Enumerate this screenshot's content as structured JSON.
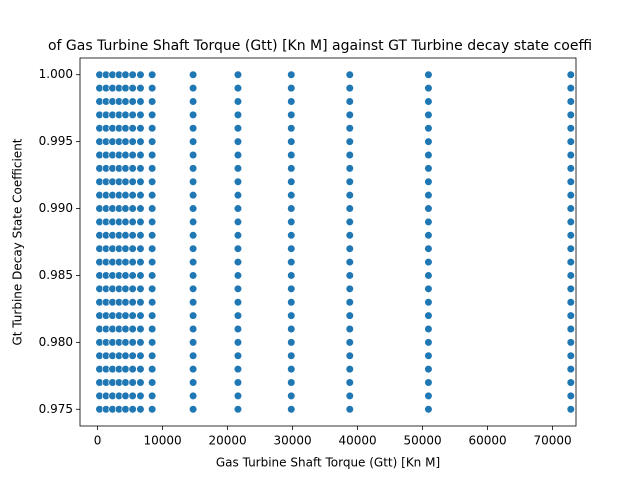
{
  "chart_data": {
    "type": "scatter",
    "title": "of Gas Turbine Shaft Torque (Gtt) [Kn M] against GT Turbine decay state coeffi",
    "x_label": "Gas Turbine Shaft Torque (Gtt) [Kn M]",
    "y_label": "Gt Turbine Decay State Coefficient",
    "color": "#1f77b4",
    "xlim": [
      -2700,
      73600
    ],
    "ylim": [
      0.97375,
      1.00125
    ],
    "xticks": [
      0,
      10000,
      20000,
      30000,
      40000,
      50000,
      60000,
      70000
    ],
    "yticks": [
      {
        "value": 0.975,
        "label": "0.975"
      },
      {
        "value": 0.98,
        "label": "0.980"
      },
      0.985,
      {
        "value": 0.99,
        "label": "0.990"
      },
      0.995,
      {
        "value": 1,
        "label": "1.000"
      }
    ],
    "x": [
      300,
      300,
      300,
      300,
      300,
      300,
      300,
      300,
      300,
      300,
      300,
      300,
      300,
      300,
      300,
      300,
      300,
      300,
      300,
      300,
      300,
      300,
      300,
      300,
      300,
      300,
      1300,
      1300,
      1300,
      1300,
      1300,
      1300,
      1300,
      1300,
      1300,
      1300,
      1300,
      1300,
      1300,
      1300,
      1300,
      1300,
      1300,
      1300,
      1300,
      1300,
      1300,
      1300,
      1300,
      1300,
      1300,
      1300,
      2300,
      2300,
      2300,
      2300,
      2300,
      2300,
      2300,
      2300,
      2300,
      2300,
      2300,
      2300,
      2300,
      2300,
      2300,
      2300,
      2300,
      2300,
      2300,
      2300,
      2300,
      2300,
      2300,
      2300,
      2300,
      2300,
      3300,
      3300,
      3300,
      3300,
      3300,
      3300,
      3300,
      3300,
      3300,
      3300,
      3300,
      3300,
      3300,
      3300,
      3300,
      3300,
      3300,
      3300,
      3300,
      3300,
      3300,
      3300,
      3300,
      3300,
      3300,
      3300,
      4300,
      4300,
      4300,
      4300,
      4300,
      4300,
      4300,
      4300,
      4300,
      4300,
      4300,
      4300,
      4300,
      4300,
      4300,
      4300,
      4300,
      4300,
      4300,
      4300,
      4300,
      4300,
      4300,
      4300,
      4300,
      4300,
      5400,
      5400,
      5400,
      5400,
      5400,
      5400,
      5400,
      5400,
      5400,
      5400,
      5400,
      5400,
      5400,
      5400,
      5400,
      5400,
      5400,
      5400,
      5400,
      5400,
      5400,
      5400,
      5400,
      5400,
      5400,
      5400,
      6600,
      6600,
      6600,
      6600,
      6600,
      6600,
      6600,
      6600,
      6600,
      6600,
      6600,
      6600,
      6600,
      6600,
      6600,
      6600,
      6600,
      6600,
      6600,
      6600,
      6600,
      6600,
      6600,
      6600,
      6600,
      6600,
      8400,
      8400,
      8400,
      8400,
      8400,
      8400,
      8400,
      8400,
      8400,
      8400,
      8400,
      8400,
      8400,
      8400,
      8400,
      8400,
      8400,
      8400,
      8400,
      8400,
      8400,
      8400,
      8400,
      8400,
      8400,
      8400,
      14700,
      14700,
      14700,
      14700,
      14700,
      14700,
      14700,
      14700,
      14700,
      14700,
      14700,
      14700,
      14700,
      14700,
      14700,
      14700,
      14700,
      14700,
      14700,
      14700,
      14700,
      14700,
      14700,
      14700,
      14700,
      14700,
      21600,
      21600,
      21600,
      21600,
      21600,
      21600,
      21600,
      21600,
      21600,
      21600,
      21600,
      21600,
      21600,
      21600,
      21600,
      21600,
      21600,
      21600,
      21600,
      21600,
      21600,
      21600,
      21600,
      21600,
      21600,
      21600,
      29800,
      29800,
      29800,
      29800,
      29800,
      29800,
      29800,
      29800,
      29800,
      29800,
      29800,
      29800,
      29800,
      29800,
      29800,
      29800,
      29800,
      29800,
      29800,
      29800,
      29800,
      29800,
      29800,
      29800,
      29800,
      29800,
      38800,
      38800,
      38800,
      38800,
      38800,
      38800,
      38800,
      38800,
      38800,
      38800,
      38800,
      38800,
      38800,
      38800,
      38800,
      38800,
      38800,
      38800,
      38800,
      38800,
      38800,
      38800,
      38800,
      38800,
      38800,
      38800,
      50900,
      50900,
      50900,
      50900,
      50900,
      50900,
      50900,
      50900,
      50900,
      50900,
      50900,
      50900,
      50900,
      50900,
      50900,
      50900,
      50900,
      50900,
      50900,
      50900,
      50900,
      50900,
      50900,
      50900,
      50900,
      50900,
      72800,
      72800,
      72800,
      72800,
      72800,
      72800,
      72800,
      72800,
      72800,
      72800,
      72800,
      72800,
      72800,
      72800,
      72800,
      72800,
      72800,
      72800,
      72800,
      72800,
      72800,
      72800,
      72800,
      72800,
      72800,
      72800
    ],
    "values": [
      1,
      0.999,
      0.998,
      0.997,
      0.996,
      0.995,
      0.994,
      0.993,
      0.992,
      0.991,
      0.99,
      0.989,
      0.988,
      0.987,
      0.986,
      0.985,
      0.984,
      0.983,
      0.982,
      0.981,
      0.98,
      0.979,
      0.978,
      0.977,
      0.976,
      0.975,
      1,
      0.999,
      0.998,
      0.997,
      0.996,
      0.995,
      0.994,
      0.993,
      0.992,
      0.991,
      0.99,
      0.989,
      0.988,
      0.987,
      0.986,
      0.985,
      0.984,
      0.983,
      0.982,
      0.981,
      0.98,
      0.979,
      0.978,
      0.977,
      0.976,
      0.975,
      1,
      0.999,
      0.998,
      0.997,
      0.996,
      0.995,
      0.994,
      0.993,
      0.992,
      0.991,
      0.99,
      0.989,
      0.988,
      0.987,
      0.986,
      0.985,
      0.984,
      0.983,
      0.982,
      0.981,
      0.98,
      0.979,
      0.978,
      0.977,
      0.976,
      0.975,
      1,
      0.999,
      0.998,
      0.997,
      0.996,
      0.995,
      0.994,
      0.993,
      0.992,
      0.991,
      0.99,
      0.989,
      0.988,
      0.987,
      0.986,
      0.985,
      0.984,
      0.983,
      0.982,
      0.981,
      0.98,
      0.979,
      0.978,
      0.977,
      0.976,
      0.975,
      1,
      0.999,
      0.998,
      0.997,
      0.996,
      0.995,
      0.994,
      0.993,
      0.992,
      0.991,
      0.99,
      0.989,
      0.988,
      0.987,
      0.986,
      0.985,
      0.984,
      0.983,
      0.982,
      0.981,
      0.98,
      0.979,
      0.978,
      0.977,
      0.976,
      0.975,
      1,
      0.999,
      0.998,
      0.997,
      0.996,
      0.995,
      0.994,
      0.993,
      0.992,
      0.991,
      0.99,
      0.989,
      0.988,
      0.987,
      0.986,
      0.985,
      0.984,
      0.983,
      0.982,
      0.981,
      0.98,
      0.979,
      0.978,
      0.977,
      0.976,
      0.975,
      1,
      0.999,
      0.998,
      0.997,
      0.996,
      0.995,
      0.994,
      0.993,
      0.992,
      0.991,
      0.99,
      0.989,
      0.988,
      0.987,
      0.986,
      0.985,
      0.984,
      0.983,
      0.982,
      0.981,
      0.98,
      0.979,
      0.978,
      0.977,
      0.976,
      0.975,
      1,
      0.999,
      0.998,
      0.997,
      0.996,
      0.995,
      0.994,
      0.993,
      0.992,
      0.991,
      0.99,
      0.989,
      0.988,
      0.987,
      0.986,
      0.985,
      0.984,
      0.983,
      0.982,
      0.981,
      0.98,
      0.979,
      0.978,
      0.977,
      0.976,
      0.975,
      1,
      0.999,
      0.998,
      0.997,
      0.996,
      0.995,
      0.994,
      0.993,
      0.992,
      0.991,
      0.99,
      0.989,
      0.988,
      0.987,
      0.986,
      0.985,
      0.984,
      0.983,
      0.982,
      0.981,
      0.98,
      0.979,
      0.978,
      0.977,
      0.976,
      0.975,
      1,
      0.999,
      0.998,
      0.997,
      0.996,
      0.995,
      0.994,
      0.993,
      0.992,
      0.991,
      0.99,
      0.989,
      0.988,
      0.987,
      0.986,
      0.985,
      0.984,
      0.983,
      0.982,
      0.981,
      0.98,
      0.979,
      0.978,
      0.977,
      0.976,
      0.975,
      1,
      0.999,
      0.998,
      0.997,
      0.996,
      0.995,
      0.994,
      0.993,
      0.992,
      0.991,
      0.99,
      0.989,
      0.988,
      0.987,
      0.986,
      0.985,
      0.984,
      0.983,
      0.982,
      0.981,
      0.98,
      0.979,
      0.978,
      0.977,
      0.976,
      0.975,
      1,
      0.999,
      0.998,
      0.997,
      0.996,
      0.995,
      0.994,
      0.993,
      0.992,
      0.991,
      0.99,
      0.989,
      0.988,
      0.987,
      0.986,
      0.985,
      0.984,
      0.983,
      0.982,
      0.981,
      0.98,
      0.979,
      0.978,
      0.977,
      0.976,
      0.975,
      1,
      0.999,
      0.998,
      0.997,
      0.996,
      0.995,
      0.994,
      0.993,
      0.992,
      0.991,
      0.99,
      0.989,
      0.988,
      0.987,
      0.986,
      0.985,
      0.984,
      0.983,
      0.982,
      0.981,
      0.98,
      0.979,
      0.978,
      0.977,
      0.976,
      0.975,
      1,
      0.999,
      0.998,
      0.997,
      0.996,
      0.995,
      0.994,
      0.993,
      0.992,
      0.991,
      0.99,
      0.989,
      0.988,
      0.987,
      0.986,
      0.985,
      0.984,
      0.983,
      0.982,
      0.981,
      0.98,
      0.979,
      0.978,
      0.977,
      0.976,
      0.975
    ]
  }
}
